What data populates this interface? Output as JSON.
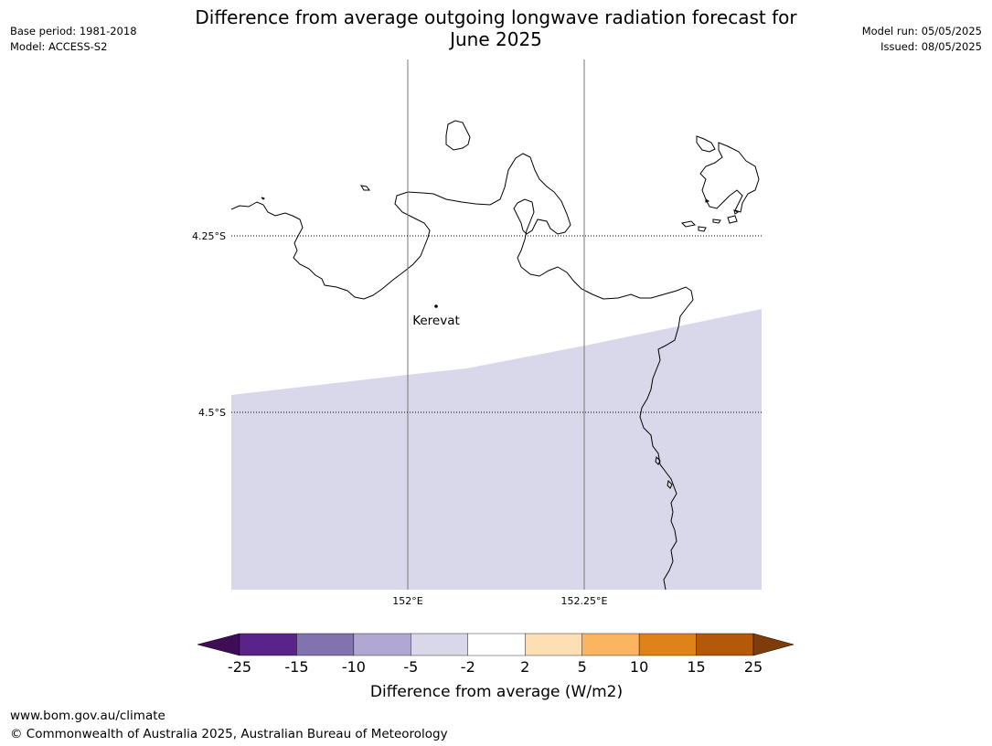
{
  "header": {
    "title_line1": "Difference from average outgoing longwave radiation forecast for",
    "title_line2": "June 2025",
    "base_period": "Base period: 1981-2018",
    "model": "Model: ACCESS-S2",
    "model_run": "Model run: 05/05/2025",
    "issued": "Issued: 08/05/2025"
  },
  "map": {
    "lat_labels": [
      "4.25°S",
      "4.5°S"
    ],
    "lon_labels": [
      "152°E",
      "152.25°E"
    ],
    "place": {
      "name": "Kerevat"
    },
    "shaded_category": "-5 to -2",
    "shade_color": "#d8d8ea"
  },
  "colorbar": {
    "label": "Difference from average (W/m2)",
    "ticks": [
      "-25",
      "-15",
      "-10",
      "-5",
      "-2",
      "2",
      "5",
      "10",
      "15",
      "25"
    ],
    "colors": [
      "#3f0c57",
      "#5a2389",
      "#8272b0",
      "#b0a8d2",
      "#d8d8ea",
      "#ffffff",
      "#fddfb3",
      "#fbb45f",
      "#e0821a",
      "#b35909",
      "#7f3b08"
    ]
  },
  "footer": {
    "url": "www.bom.gov.au/climate",
    "copyright": "© Commonwealth of Australia 2025, Australian Bureau of Meteorology"
  }
}
